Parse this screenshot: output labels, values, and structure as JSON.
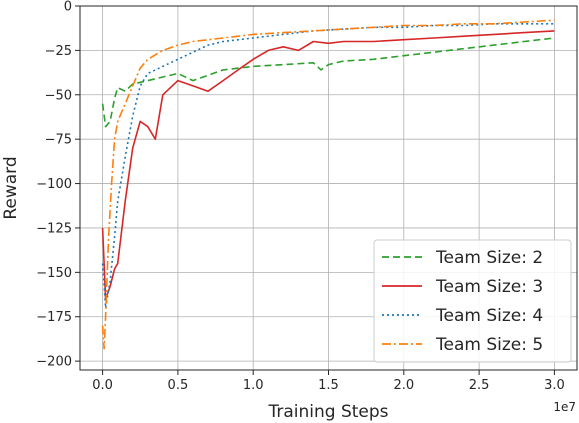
{
  "chart_data": {
    "type": "line",
    "xlabel": "Training Steps",
    "ylabel": "Reward",
    "x_offset_label": "1e7",
    "xlim": [
      -0.15,
      3.15
    ],
    "ylim": [
      -205,
      0
    ],
    "x_ticks": [
      0.0,
      0.5,
      1.0,
      1.5,
      2.0,
      2.5,
      3.0
    ],
    "x_tick_labels": [
      "0.0",
      "0.5",
      "1.0",
      "1.5",
      "2.0",
      "2.5",
      "3.0"
    ],
    "y_ticks": [
      0,
      -25,
      -50,
      -75,
      -100,
      -125,
      -150,
      -175,
      -200
    ],
    "y_tick_labels": [
      "0",
      "−25",
      "−50",
      "−75",
      "−100",
      "−125",
      "−150",
      "−175",
      "−200"
    ],
    "grid": true,
    "legend_position": "lower-right",
    "series": [
      {
        "name": "Team Size: 2",
        "color": "#2ca02c",
        "dash": "7,4",
        "x": [
          0.0,
          0.02,
          0.05,
          0.08,
          0.1,
          0.15,
          0.2,
          0.3,
          0.4,
          0.5,
          0.6,
          0.8,
          1.0,
          1.2,
          1.4,
          1.45,
          1.5,
          1.6,
          1.8,
          2.0,
          2.2,
          2.4,
          2.6,
          2.8,
          3.0
        ],
        "y": [
          -55,
          -68,
          -65,
          -52,
          -46,
          -48,
          -44,
          -42,
          -40,
          -38,
          -42,
          -36,
          -34,
          -33,
          -32,
          -36,
          -33,
          -31,
          -30,
          -28,
          -26,
          -24,
          -22,
          -20,
          -18
        ]
      },
      {
        "name": "Team Size: 3",
        "color": "#d62728",
        "dash": "",
        "x": [
          0.0,
          0.02,
          0.05,
          0.08,
          0.1,
          0.15,
          0.2,
          0.25,
          0.3,
          0.35,
          0.4,
          0.5,
          0.6,
          0.7,
          0.8,
          0.9,
          1.0,
          1.1,
          1.2,
          1.3,
          1.4,
          1.5,
          1.6,
          1.8,
          2.0,
          2.2,
          2.4,
          2.6,
          2.8,
          3.0
        ],
        "y": [
          -125,
          -165,
          -158,
          -148,
          -145,
          -110,
          -80,
          -65,
          -68,
          -75,
          -50,
          -42,
          -45,
          -48,
          -42,
          -36,
          -30,
          -25,
          -23,
          -25,
          -20,
          -21,
          -20,
          -20,
          -19,
          -18,
          -17,
          -16,
          -15,
          -14
        ]
      },
      {
        "name": "Team Size: 4",
        "color": "#1f77b4",
        "dash": "2,3",
        "x": [
          0.0,
          0.02,
          0.05,
          0.08,
          0.1,
          0.15,
          0.2,
          0.25,
          0.3,
          0.4,
          0.5,
          0.6,
          0.7,
          0.8,
          1.0,
          1.2,
          1.4,
          1.6,
          1.8,
          2.0,
          2.2,
          2.4,
          2.6,
          2.8,
          3.0
        ],
        "y": [
          -145,
          -170,
          -155,
          -130,
          -110,
          -85,
          -62,
          -45,
          -38,
          -34,
          -30,
          -26,
          -22,
          -20,
          -18,
          -16,
          -14,
          -13,
          -12,
          -12,
          -11,
          -11,
          -10,
          -10,
          -10
        ]
      },
      {
        "name": "Team Size: 5",
        "color": "#ff7f0e",
        "dash": "9,3,2,3",
        "x": [
          0.0,
          0.01,
          0.02,
          0.04,
          0.06,
          0.08,
          0.1,
          0.15,
          0.2,
          0.25,
          0.3,
          0.4,
          0.5,
          0.6,
          0.8,
          1.0,
          1.2,
          1.4,
          1.6,
          1.8,
          2.0,
          2.2,
          2.4,
          2.6,
          2.8,
          3.0
        ],
        "y": [
          -180,
          -193,
          -175,
          -130,
          -100,
          -75,
          -65,
          -55,
          -45,
          -35,
          -30,
          -25,
          -22,
          -20,
          -18,
          -16,
          -15,
          -14,
          -13,
          -12,
          -11,
          -11,
          -10,
          -10,
          -9,
          -8
        ]
      }
    ]
  }
}
